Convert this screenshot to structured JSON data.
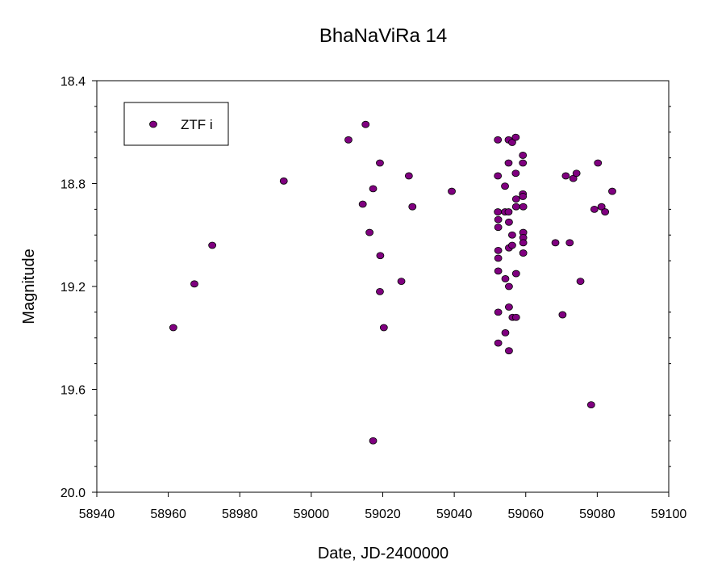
{
  "chart_data": {
    "type": "scatter",
    "title": "BhaNaViRa 14",
    "xlabel": "Date, JD-2400000",
    "ylabel": "Magnitude",
    "xlim": [
      58940,
      59100
    ],
    "ylim": [
      18.4,
      20.0
    ],
    "y_inverted": true,
    "x_ticks": [
      58940,
      58960,
      58980,
      59000,
      59020,
      59040,
      59060,
      59080,
      59100
    ],
    "x_tick_labels": [
      "58940",
      "58960",
      "58980",
      "59000",
      "59020",
      "59040",
      "59060",
      "59080",
      "59100"
    ],
    "y_ticks": [
      18.4,
      18.8,
      19.2,
      19.6,
      20.0
    ],
    "y_tick_labels": [
      "18.4",
      "18.8",
      "19.2",
      "19.6",
      "20.0"
    ],
    "grid": false,
    "legend_position": "top-left",
    "series": [
      {
        "name": "ZTF i",
        "color": "#800080",
        "points": [
          [
            58961.4,
            19.36
          ],
          [
            58967.3,
            19.19
          ],
          [
            58972.3,
            19.04
          ],
          [
            58992.3,
            18.79
          ],
          [
            59010.4,
            18.63
          ],
          [
            59015.2,
            18.57
          ],
          [
            59014.4,
            18.88
          ],
          [
            59016.3,
            18.99
          ],
          [
            59017.3,
            18.82
          ],
          [
            59017.3,
            19.8
          ],
          [
            59019.2,
            18.72
          ],
          [
            59019.3,
            19.08
          ],
          [
            59019.2,
            19.22
          ],
          [
            59020.3,
            19.36
          ],
          [
            59025.2,
            19.18
          ],
          [
            59027.3,
            18.77
          ],
          [
            59028.3,
            18.89
          ],
          [
            59039.3,
            18.83
          ],
          [
            59052.2,
            18.63
          ],
          [
            59052.2,
            18.77
          ],
          [
            59052.2,
            18.91
          ],
          [
            59052.3,
            18.94
          ],
          [
            59052.3,
            18.97
          ],
          [
            59052.3,
            19.06
          ],
          [
            59052.3,
            19.09
          ],
          [
            59052.3,
            19.14
          ],
          [
            59052.3,
            19.3
          ],
          [
            59052.3,
            19.42
          ],
          [
            59054.2,
            18.81
          ],
          [
            59054.2,
            18.91
          ],
          [
            59054.3,
            19.17
          ],
          [
            59054.3,
            19.38
          ],
          [
            59055.2,
            18.63
          ],
          [
            59055.2,
            18.72
          ],
          [
            59055.2,
            18.91
          ],
          [
            59055.3,
            18.95
          ],
          [
            59055.3,
            19.05
          ],
          [
            59055.3,
            19.2
          ],
          [
            59055.3,
            19.28
          ],
          [
            59055.3,
            19.45
          ],
          [
            59056.2,
            18.64
          ],
          [
            59056.2,
            19.0
          ],
          [
            59056.2,
            19.04
          ],
          [
            59056.3,
            19.32
          ],
          [
            59057.2,
            18.62
          ],
          [
            59057.2,
            18.76
          ],
          [
            59057.3,
            18.86
          ],
          [
            59057.3,
            18.89
          ],
          [
            59057.3,
            19.15
          ],
          [
            59057.3,
            19.32
          ],
          [
            59059.2,
            18.69
          ],
          [
            59059.2,
            18.72
          ],
          [
            59059.2,
            18.84
          ],
          [
            59059.2,
            18.85
          ],
          [
            59059.3,
            18.89
          ],
          [
            59059.3,
            18.99
          ],
          [
            59059.3,
            19.01
          ],
          [
            59059.3,
            19.03
          ],
          [
            59059.3,
            19.07
          ],
          [
            59068.3,
            19.03
          ],
          [
            59070.3,
            19.31
          ],
          [
            59071.2,
            18.77
          ],
          [
            59072.3,
            19.03
          ],
          [
            59073.3,
            18.78
          ],
          [
            59074.2,
            18.76
          ],
          [
            59075.3,
            19.18
          ],
          [
            59078.3,
            19.66
          ],
          [
            59079.2,
            18.9
          ],
          [
            59080.2,
            18.72
          ],
          [
            59081.2,
            18.89
          ],
          [
            59082.2,
            18.91
          ],
          [
            59084.2,
            18.83
          ]
        ]
      }
    ]
  }
}
